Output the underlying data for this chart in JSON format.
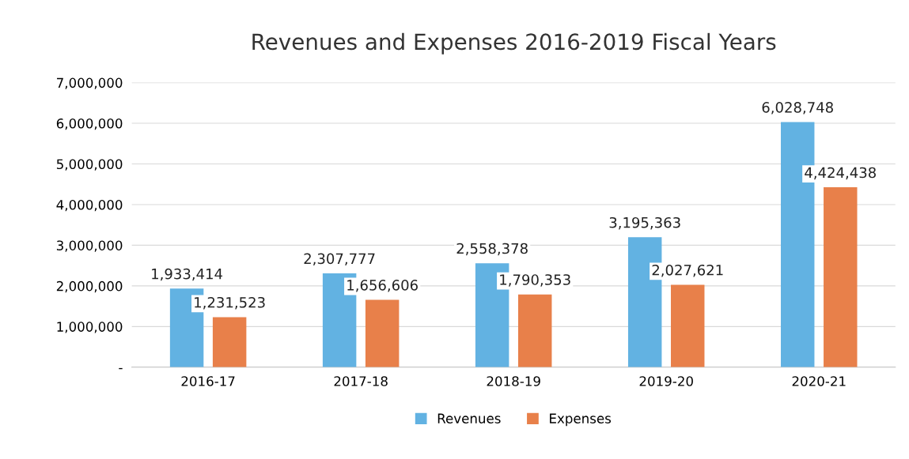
{
  "chart_data": {
    "type": "bar",
    "title": "Revenues and Expenses 2016-2019 Fiscal Years",
    "categories": [
      "2016-17",
      "2017-18",
      "2018-19",
      "2019-20",
      "2020-21"
    ],
    "series": [
      {
        "name": "Revenues",
        "color": "#62b2e2",
        "values": [
          1933414,
          2307777,
          2558378,
          3195363,
          6028748
        ],
        "value_labels": [
          "1,933,414",
          "2,307,777",
          "2,558,378",
          "3,195,363",
          "6,028,748"
        ]
      },
      {
        "name": "Expenses",
        "color": "#e8804a",
        "values": [
          1231523,
          1656606,
          1790353,
          2027621,
          4424438
        ],
        "value_labels": [
          "1,231,523",
          "1,656,606",
          "1,790,353",
          "2,027,621",
          "4,424,438"
        ]
      }
    ],
    "ylim": [
      0,
      7000000
    ],
    "yticks": [
      {
        "value": 0,
        "label": "-"
      },
      {
        "value": 1000000,
        "label": "1,000,000"
      },
      {
        "value": 2000000,
        "label": "2,000,000"
      },
      {
        "value": 3000000,
        "label": "3,000,000"
      },
      {
        "value": 4000000,
        "label": "4,000,000"
      },
      {
        "value": 5000000,
        "label": "5,000,000"
      },
      {
        "value": 6000000,
        "label": "6,000,000"
      },
      {
        "value": 7000000,
        "label": "7,000,000"
      }
    ],
    "grid": "y",
    "legend": "bottom"
  }
}
